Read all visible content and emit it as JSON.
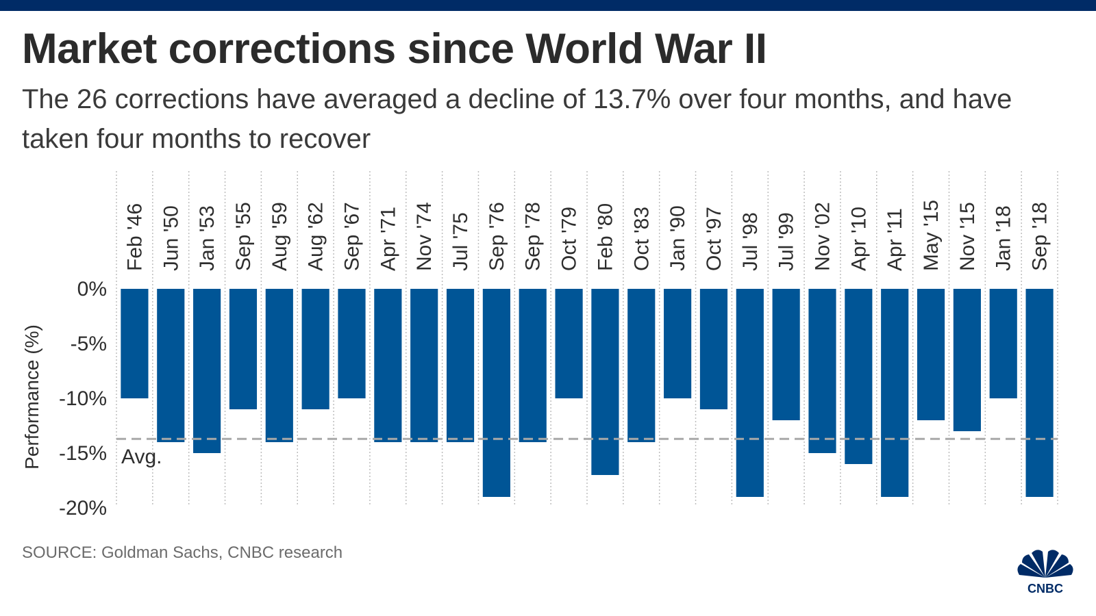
{
  "title": "Market corrections since World War II",
  "subtitle": "The 26 corrections have averaged a decline of 13.7% over four months, and have taken four months to recover",
  "source": "SOURCE: Goldman Sachs, CNBC research",
  "logo": {
    "text": "CNBC",
    "icon": "cnbc-peacock-icon"
  },
  "colors": {
    "bar": "#005596",
    "top_bar": "#002b66",
    "avg_line": "#a8a8a8",
    "text": "#2e2e2e"
  },
  "chart_data": {
    "type": "bar",
    "ylabel": "Performance (%)",
    "xlabel": "",
    "ylim": [
      -21,
      0
    ],
    "yticks": [
      0,
      -5,
      -10,
      -15,
      -20
    ],
    "ytick_labels": [
      "0%",
      "-5%",
      "-10%",
      "-15%",
      "-20%"
    ],
    "grid": "vertical dotted",
    "average": {
      "value": -13.7,
      "label": "Avg."
    },
    "categories": [
      "Feb '46",
      "Jun '50",
      "Jan '53",
      "Sep '55",
      "Aug '59",
      "Aug '62",
      "Sep '67",
      "Apr '71",
      "Nov '74",
      "Jul '75",
      "Sep '76",
      "Sep '78",
      "Oct '79",
      "Feb '80",
      "Oct '83",
      "Jan '90",
      "Oct '97",
      "Jul '98",
      "Jul '99",
      "Nov '02",
      "Apr '10",
      "Apr '11",
      "May '15",
      "Nov '15",
      "Jan '18",
      "Sep '18"
    ],
    "values": [
      -10,
      -14,
      -15,
      -11,
      -14,
      -11,
      -10,
      -14,
      -14,
      -14,
      -19,
      -14,
      -10,
      -17,
      -14,
      -10,
      -11,
      -19,
      -12,
      -15,
      -16,
      -19,
      -12,
      -13,
      -10,
      -19
    ]
  }
}
